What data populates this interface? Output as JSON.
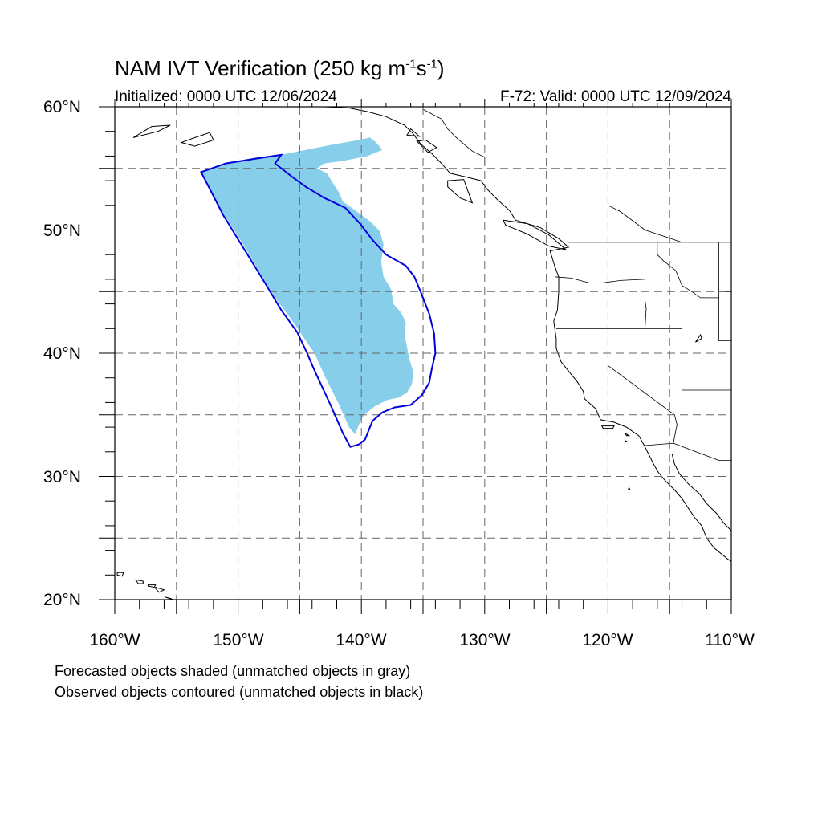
{
  "title": {
    "prefix": "NAM IVT Verification (250 kg m",
    "exp1": "-1",
    "mid": "s",
    "exp2": "-1",
    "suffix": ")"
  },
  "initialized": "Initialized: 0000 UTC 12/06/2024",
  "valid": "F-72: Valid: 0000 UTC 12/09/2024",
  "lat_labels": [
    "60°N",
    "50°N",
    "40°N",
    "30°N",
    "20°N"
  ],
  "lon_labels": [
    "160°W",
    "150°W",
    "140°W",
    "130°W",
    "120°W",
    "110°W"
  ],
  "notes": [
    "Forecasted objects shaded (unmatched objects in gray)",
    "Observed objects contoured (unmatched objects in black)"
  ],
  "colors": {
    "forecast_fill": "#87ceeb",
    "observed_contour": "#0000dd",
    "coastline": "#000000",
    "grid": "#666666"
  },
  "extent": {
    "lon_min": -160,
    "lon_max": -110,
    "lat_min": 20,
    "lat_max": 60
  },
  "gridlines": {
    "lons": [
      -155,
      -150,
      -145,
      -140,
      -135,
      -130,
      -125,
      -120,
      -115
    ],
    "lats": [
      55,
      50,
      45,
      40,
      35,
      30,
      25
    ]
  },
  "forecast_object": [
    [
      -153,
      54.7
    ],
    [
      -151,
      55.4
    ],
    [
      -148.5,
      55.9
    ],
    [
      -146.5,
      56.1
    ],
    [
      -144.5,
      56.5
    ],
    [
      -142.5,
      56.9
    ],
    [
      -140.2,
      57.3
    ],
    [
      -139.3,
      57.5
    ],
    [
      -138.8,
      57.1
    ],
    [
      -138.3,
      56.5
    ],
    [
      -139.5,
      56.0
    ],
    [
      -141.5,
      55.6
    ],
    [
      -143.0,
      55.4
    ],
    [
      -143.6,
      55.0
    ],
    [
      -142.8,
      54.6
    ],
    [
      -142.3,
      53.8
    ],
    [
      -141.8,
      53.0
    ],
    [
      -141.5,
      52.3
    ],
    [
      -140.5,
      51.6
    ],
    [
      -139.3,
      50.7
    ],
    [
      -138.5,
      49.9
    ],
    [
      -138.2,
      48.8
    ],
    [
      -138.4,
      47.4
    ],
    [
      -138.2,
      46.2
    ],
    [
      -137.6,
      45.2
    ],
    [
      -137.4,
      44.0
    ],
    [
      -136.8,
      43.3
    ],
    [
      -136.4,
      42.5
    ],
    [
      -136.5,
      41.5
    ],
    [
      -136.3,
      40.5
    ],
    [
      -136.1,
      39.5
    ],
    [
      -135.8,
      38.5
    ],
    [
      -135.9,
      37.5
    ],
    [
      -136.3,
      36.8
    ],
    [
      -137.0,
      36.4
    ],
    [
      -137.9,
      36.2
    ],
    [
      -138.9,
      35.7
    ],
    [
      -139.8,
      35.0
    ],
    [
      -140.2,
      34.2
    ],
    [
      -140.5,
      33.4
    ],
    [
      -141.0,
      34.0
    ],
    [
      -141.8,
      35.8
    ],
    [
      -143.0,
      38.2
    ],
    [
      -143.8,
      40.0
    ],
    [
      -144.5,
      41.0
    ],
    [
      -145.5,
      42.5
    ],
    [
      -147.0,
      44.5
    ],
    [
      -148.5,
      47.0
    ],
    [
      -150.0,
      49.5
    ],
    [
      -151.5,
      51.8
    ],
    [
      -153,
      54.7
    ]
  ],
  "observed_object": [
    [
      -153,
      54.7
    ],
    [
      -151,
      55.4
    ],
    [
      -148.5,
      55.8
    ],
    [
      -146.5,
      56.1
    ],
    [
      -147.0,
      55.4
    ],
    [
      -145.6,
      54.3
    ],
    [
      -144.5,
      53.5
    ],
    [
      -143.0,
      52.6
    ],
    [
      -141.3,
      51.8
    ],
    [
      -140.1,
      50.5
    ],
    [
      -139.1,
      49.2
    ],
    [
      -138.0,
      48.0
    ],
    [
      -136.4,
      47.1
    ],
    [
      -135.7,
      46.2
    ],
    [
      -135.2,
      45.0
    ],
    [
      -134.5,
      43.2
    ],
    [
      -134.1,
      41.6
    ],
    [
      -134.0,
      40.0
    ],
    [
      -134.3,
      38.7
    ],
    [
      -134.5,
      37.6
    ],
    [
      -135.1,
      36.6
    ],
    [
      -136.0,
      35.8
    ],
    [
      -137.3,
      35.6
    ],
    [
      -138.3,
      35.2
    ],
    [
      -139.1,
      34.5
    ],
    [
      -139.7,
      33.0
    ],
    [
      -140.2,
      32.6
    ],
    [
      -140.9,
      32.4
    ],
    [
      -141.5,
      33.5
    ],
    [
      -142.5,
      35.8
    ],
    [
      -143.8,
      38.6
    ],
    [
      -144.4,
      40.0
    ],
    [
      -145.2,
      41.7
    ],
    [
      -146.5,
      43.5
    ],
    [
      -148.0,
      46.0
    ],
    [
      -149.6,
      48.6
    ],
    [
      -151.2,
      51.2
    ],
    [
      -153,
      54.7
    ]
  ],
  "coastline": [
    [
      -146.5,
      60.0
    ],
    [
      -145.0,
      60.3
    ],
    [
      -143.0,
      60.0
    ],
    [
      -141.0,
      59.9
    ],
    [
      -139.5,
      59.6
    ],
    [
      -138.0,
      59.2
    ],
    [
      -136.5,
      58.5
    ],
    [
      -135.8,
      57.8
    ],
    [
      -135.2,
      57.0
    ],
    [
      -134.3,
      56.2
    ],
    [
      -133.5,
      55.4
    ],
    [
      -132.8,
      54.6
    ],
    [
      -131.5,
      54.3
    ],
    [
      -130.3,
      54.0
    ],
    [
      -129.8,
      53.3
    ],
    [
      -128.9,
      52.4
    ],
    [
      -128.0,
      51.6
    ],
    [
      -127.5,
      50.8
    ],
    [
      -125.5,
      50.2
    ],
    [
      -124.0,
      49.3
    ],
    [
      -123.2,
      48.6
    ],
    [
      -124.7,
      48.3
    ],
    [
      -124.3,
      47.0
    ],
    [
      -124.0,
      46.2
    ],
    [
      -124.0,
      45.0
    ],
    [
      -124.1,
      43.5
    ],
    [
      -124.4,
      42.6
    ],
    [
      -124.2,
      41.2
    ],
    [
      -124.2,
      40.4
    ],
    [
      -123.8,
      39.3
    ],
    [
      -123.0,
      38.3
    ],
    [
      -122.5,
      37.7
    ],
    [
      -122.0,
      36.9
    ],
    [
      -121.9,
      36.3
    ],
    [
      -121.0,
      35.5
    ],
    [
      -120.6,
      34.6
    ],
    [
      -119.5,
      34.4
    ],
    [
      -118.5,
      34.0
    ],
    [
      -117.5,
      33.3
    ],
    [
      -117.1,
      32.6
    ],
    [
      -116.7,
      31.8
    ],
    [
      -116.3,
      31.0
    ],
    [
      -115.9,
      30.3
    ],
    [
      -115.4,
      29.7
    ],
    [
      -114.6,
      28.9
    ],
    [
      -114.0,
      28.2
    ],
    [
      -113.0,
      26.7
    ],
    [
      -112.4,
      26.0
    ],
    [
      -112.0,
      25.0
    ],
    [
      -111.4,
      24.2
    ],
    [
      -110.3,
      23.3
    ],
    [
      -110.0,
      23.1
    ]
  ],
  "gulf_coast": [
    [
      -114.8,
      31.8
    ],
    [
      -114.6,
      31.0
    ],
    [
      -114.2,
      30.2
    ],
    [
      -113.4,
      29.3
    ],
    [
      -112.6,
      28.6
    ],
    [
      -112.0,
      27.8
    ],
    [
      -111.2,
      27.0
    ],
    [
      -110.6,
      26.2
    ],
    [
      -110.0,
      25.6
    ]
  ],
  "borders": [
    [
      [
        -123.2,
        49.0
      ],
      [
        -110.0,
        49.0
      ]
    ],
    [
      [
        -124.3,
        46.2
      ],
      [
        -123.0,
        46.1
      ],
      [
        -121.5,
        45.7
      ],
      [
        -120.5,
        45.7
      ],
      [
        -119.0,
        45.9
      ],
      [
        -117.0,
        46.0
      ]
    ],
    [
      [
        -117.0,
        49.0
      ],
      [
        -117.0,
        44.3
      ],
      [
        -116.9,
        43.6
      ],
      [
        -117.0,
        42.0
      ]
    ],
    [
      [
        -124.2,
        42.0
      ],
      [
        -114.0,
        42.0
      ]
    ],
    [
      [
        -120.0,
        42.0
      ],
      [
        -120.0,
        39.0
      ],
      [
        -114.6,
        35.0
      ]
    ],
    [
      [
        -114.0,
        42.0
      ],
      [
        -114.0,
        36.2
      ]
    ],
    [
      [
        -114.6,
        35.0
      ],
      [
        -114.4,
        34.2
      ],
      [
        -114.7,
        32.7
      ],
      [
        -117.1,
        32.5
      ]
    ],
    [
      [
        -114.7,
        32.7
      ],
      [
        -111.0,
        31.3
      ],
      [
        -110.0,
        31.3
      ]
    ],
    [
      [
        -114.0,
        37.0
      ],
      [
        -110.0,
        37.0
      ]
    ],
    [
      [
        -111.0,
        49.0
      ],
      [
        -111.0,
        45.0
      ],
      [
        -110.0,
        45.0
      ]
    ],
    [
      [
        -111.0,
        45.0
      ],
      [
        -111.0,
        41.0
      ],
      [
        -110.0,
        41.0
      ]
    ],
    [
      [
        -116.0,
        49.0
      ],
      [
        -116.0,
        48.0
      ],
      [
        -115.5,
        47.5
      ],
      [
        -114.5,
        46.7
      ],
      [
        -114.0,
        45.5
      ],
      [
        -113.2,
        45.0
      ],
      [
        -112.5,
        44.5
      ],
      [
        -111.0,
        44.5
      ]
    ],
    [
      [
        -135.0,
        59.8
      ],
      [
        -133.5,
        59.0
      ],
      [
        -133.0,
        58.2
      ],
      [
        -132.2,
        57.4
      ],
      [
        -131.0,
        56.4
      ],
      [
        -130.0,
        55.9
      ],
      [
        -130.0,
        55.3
      ]
    ],
    [
      [
        -141.0,
        60.0
      ],
      [
        -141.0,
        60.3
      ]
    ],
    [
      [
        -120.0,
        60.0
      ],
      [
        -120.0,
        52.0
      ],
      [
        -119.0,
        51.5
      ],
      [
        -117.0,
        50.0
      ],
      [
        -114.0,
        49.0
      ]
    ],
    [
      [
        -114.0,
        60.0
      ],
      [
        -114.0,
        56.0
      ]
    ]
  ],
  "islands": [
    [
      [
        -153.5,
        57.5
      ],
      [
        -152.3,
        57.9
      ],
      [
        -152.0,
        57.3
      ],
      [
        -153.5,
        56.8
      ],
      [
        -154.6,
        57.1
      ],
      [
        -153.5,
        57.5
      ]
    ],
    [
      [
        -158.5,
        57.5
      ],
      [
        -156.5,
        58.0
      ],
      [
        -155.5,
        58.5
      ],
      [
        -157.0,
        58.4
      ],
      [
        -158.5,
        57.5
      ]
    ],
    [
      [
        -133.0,
        54.0
      ],
      [
        -131.7,
        54.1
      ],
      [
        -131.3,
        53.0
      ],
      [
        -131.0,
        52.2
      ],
      [
        -132.0,
        52.6
      ],
      [
        -133.0,
        53.5
      ],
      [
        -133.0,
        54.0
      ]
    ],
    [
      [
        -128.5,
        50.8
      ],
      [
        -126.5,
        50.5
      ],
      [
        -124.8,
        49.6
      ],
      [
        -123.4,
        48.4
      ],
      [
        -124.8,
        48.7
      ],
      [
        -126.6,
        49.7
      ],
      [
        -128.3,
        50.4
      ],
      [
        -128.5,
        50.8
      ]
    ],
    [
      [
        -134.8,
        57.3
      ],
      [
        -133.9,
        56.7
      ],
      [
        -134.6,
        56.3
      ],
      [
        -135.5,
        57.2
      ],
      [
        -134.8,
        57.3
      ]
    ],
    [
      [
        -136.0,
        58.2
      ],
      [
        -135.3,
        57.6
      ],
      [
        -136.3,
        57.7
      ],
      [
        -136.0,
        58.2
      ]
    ],
    [
      [
        -159.8,
        22.2
      ],
      [
        -159.3,
        22.2
      ],
      [
        -159.4,
        21.9
      ],
      [
        -159.8,
        22.0
      ],
      [
        -159.8,
        22.2
      ]
    ],
    [
      [
        -158.3,
        21.6
      ],
      [
        -157.7,
        21.5
      ],
      [
        -157.7,
        21.3
      ],
      [
        -158.1,
        21.3
      ],
      [
        -158.3,
        21.6
      ]
    ],
    [
      [
        -157.3,
        21.2
      ],
      [
        -156.7,
        21.2
      ],
      [
        -156.8,
        21.0
      ],
      [
        -157.3,
        21.1
      ],
      [
        -157.3,
        21.2
      ]
    ],
    [
      [
        -156.7,
        21.0
      ],
      [
        -156.0,
        20.8
      ],
      [
        -156.4,
        20.6
      ],
      [
        -156.7,
        20.9
      ],
      [
        -156.7,
        21.0
      ]
    ],
    [
      [
        -155.9,
        20.2
      ],
      [
        -155.0,
        19.9
      ],
      [
        -155.5,
        20.1
      ],
      [
        -155.9,
        20.2
      ]
    ],
    [
      [
        -120.5,
        34.1
      ],
      [
        -119.5,
        34.1
      ],
      [
        -119.6,
        33.9
      ],
      [
        -120.4,
        33.9
      ],
      [
        -120.5,
        34.1
      ]
    ],
    [
      [
        -118.6,
        33.5
      ],
      [
        -118.3,
        33.3
      ],
      [
        -118.5,
        33.3
      ],
      [
        -118.6,
        33.5
      ]
    ],
    [
      [
        -118.6,
        32.9
      ],
      [
        -118.4,
        32.8
      ],
      [
        -118.6,
        32.8
      ],
      [
        -118.6,
        32.9
      ]
    ],
    [
      [
        -118.3,
        29.1
      ],
      [
        -118.2,
        28.9
      ],
      [
        -118.35,
        28.9
      ],
      [
        -118.3,
        29.1
      ]
    ],
    [
      [
        -112.9,
        40.9
      ],
      [
        -112.4,
        41.2
      ],
      [
        -112.5,
        41.5
      ],
      [
        -112.7,
        41.2
      ],
      [
        -112.9,
        40.9
      ]
    ]
  ]
}
